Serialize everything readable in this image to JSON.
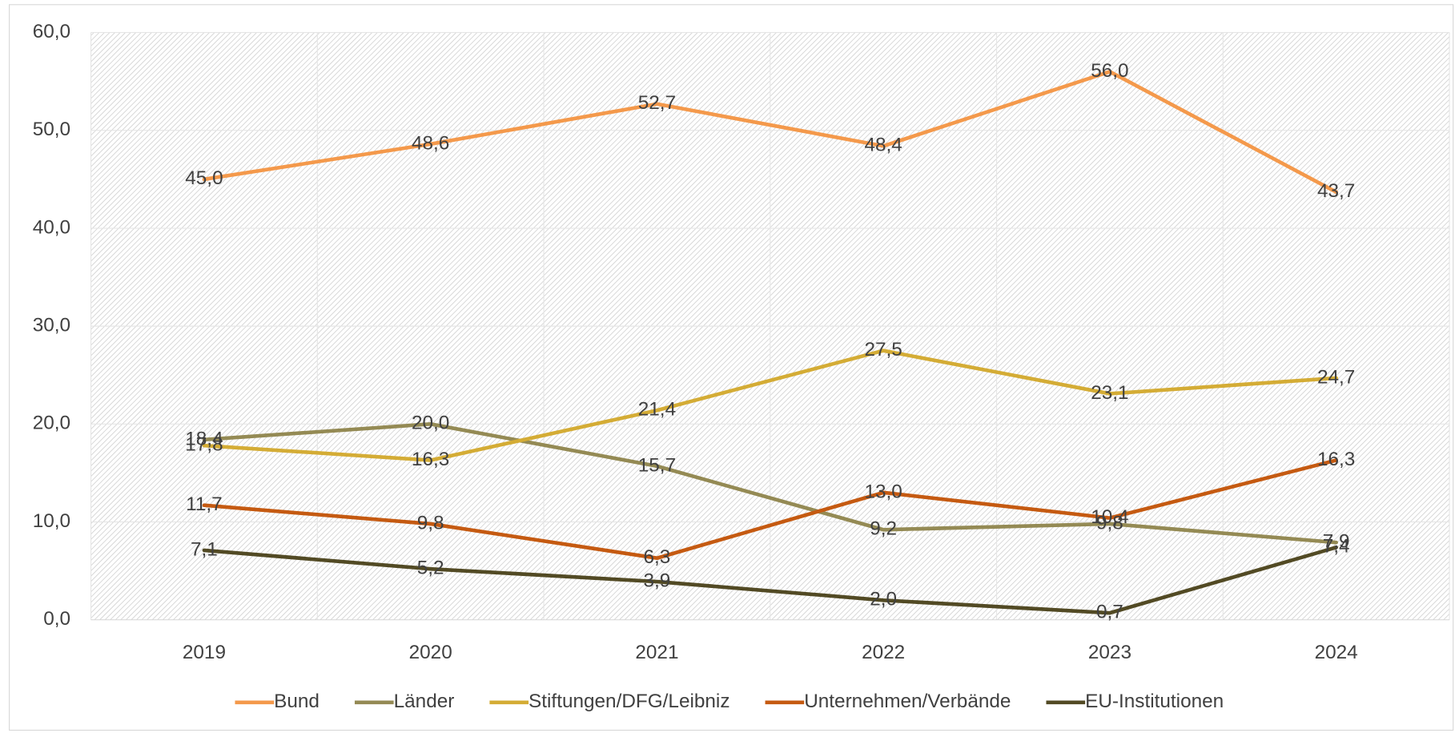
{
  "chart_data": {
    "type": "line",
    "categories": [
      "2019",
      "2020",
      "2021",
      "2022",
      "2023",
      "2024"
    ],
    "ylim": [
      0,
      60
    ],
    "yticks": [
      {
        "value": 0,
        "label": "0,0"
      },
      {
        "value": 10,
        "label": "10,0"
      },
      {
        "value": 20,
        "label": "20,0"
      },
      {
        "value": 30,
        "label": "30,0"
      },
      {
        "value": 40,
        "label": "40,0"
      },
      {
        "value": 50,
        "label": "50,0"
      },
      {
        "value": 60,
        "label": "60,0"
      }
    ],
    "grid": true,
    "legend": "bottom",
    "series": [
      {
        "name": "Bund",
        "color": "#f4994b",
        "values": [
          45.0,
          48.6,
          52.7,
          48.4,
          56.0,
          43.7
        ],
        "value_labels": [
          "45,0",
          "48,6",
          "52,7",
          "48,4",
          "56,0",
          "43,7"
        ]
      },
      {
        "name": "Länder",
        "color": "#948a54",
        "values": [
          18.4,
          20.0,
          15.7,
          9.2,
          9.8,
          7.9
        ],
        "value_labels": [
          "18,4",
          "20,0",
          "15,7",
          "9,2",
          "9,8",
          "7,9"
        ]
      },
      {
        "name": "Stiftungen/DFG/Leibniz",
        "color": "#d4ac35",
        "values": [
          17.8,
          16.3,
          21.4,
          27.5,
          23.1,
          24.7
        ],
        "value_labels": [
          "17,8",
          "16,3",
          "21,4",
          "27,5",
          "23,1",
          "24,7"
        ]
      },
      {
        "name": "Unternehmen/Verbände",
        "color": "#c55a11",
        "values": [
          11.7,
          9.8,
          6.3,
          13.0,
          10.4,
          16.3
        ],
        "value_labels": [
          "11,7",
          "9,8",
          "6,3",
          "13,0",
          "10,4",
          "16,3"
        ]
      },
      {
        "name": "EU-Institutionen",
        "color": "#524a24",
        "values": [
          7.1,
          5.2,
          3.9,
          2.0,
          0.7,
          7.4
        ],
        "value_labels": [
          "7,1",
          "5,2",
          "3,9",
          "2,0",
          "0,7",
          "7,4"
        ]
      }
    ]
  }
}
